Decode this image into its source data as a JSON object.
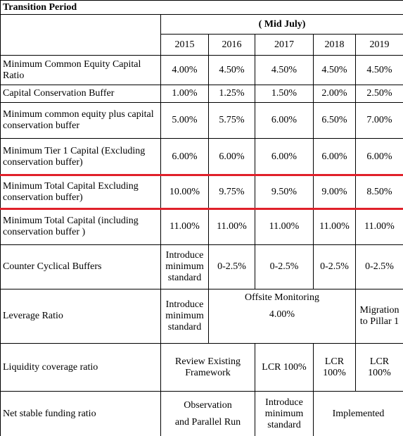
{
  "title": "Transition Period",
  "period_label": "( Mid July)",
  "years": [
    "2015",
    "2016",
    "2017",
    "2018",
    "2019"
  ],
  "rows": [
    {
      "label": "Minimum Common Equity Capital Ratio",
      "cells": [
        "4.00%",
        "4.50%",
        "4.50%",
        "4.50%",
        "4.50%"
      ]
    },
    {
      "label": "Capital Conservation Buffer",
      "cells": [
        "1.00%",
        "1.25%",
        "1.50%",
        "2.00%",
        "2.50%"
      ]
    },
    {
      "label": "Minimum common equity plus capital conservation buffer",
      "cells": [
        "5.00%",
        "5.75%",
        "6.00%",
        "6.50%",
        "7.00%"
      ]
    },
    {
      "label": "Minimum Tier 1 Capital (Excluding conservation buffer)",
      "cells": [
        "6.00%",
        "6.00%",
        "6.00%",
        "6.00%",
        "6.00%"
      ]
    },
    {
      "label": "Minimum Total Capital Excluding conservation buffer)",
      "cells": [
        "10.00%",
        "9.75%",
        "9.50%",
        "9.00%",
        "8.50%"
      ]
    },
    {
      "label": "Minimum Total Capital (including conservation buffer )",
      "cells": [
        "11.00%",
        "11.00%",
        "11.00%",
        "11.00%",
        "11.00%"
      ]
    },
    {
      "label": "Counter Cyclical Buffers",
      "cells": [
        "Introduce minimum standard",
        "0-2.5%",
        "0-2.5%",
        "0-2.5%",
        "0-2.5%"
      ]
    },
    {
      "label": "Leverage Ratio",
      "cells": [
        "Introduce minimum standard",
        "Offsite Monitoring",
        "4.00%",
        "Migration to Pillar 1"
      ]
    },
    {
      "label": "Liquidity coverage ratio",
      "cells": [
        "Review Existing Framework",
        "LCR 100%",
        "LCR 100%",
        "LCR 100%"
      ]
    },
    {
      "label": "Net stable funding ratio",
      "cells": [
        "Observation",
        "and Parallel Run",
        "Introduce minimum standard",
        "Implemented"
      ]
    }
  ]
}
